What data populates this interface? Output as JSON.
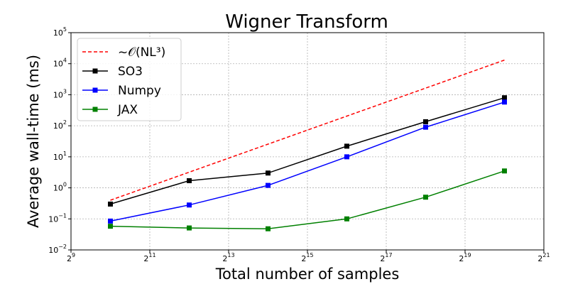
{
  "chart_data": {
    "type": "line",
    "title": "Wigner Transform",
    "xlabel": "Total number of samples",
    "ylabel": "Average wall-time (ms)",
    "x_scale": "log2",
    "y_scale": "log10",
    "xlim": [
      512,
      2097152
    ],
    "ylim": [
      0.01,
      100000
    ],
    "x_ticks": [
      {
        "base": "2",
        "exp": "9",
        "value": 512
      },
      {
        "base": "2",
        "exp": "11",
        "value": 2048
      },
      {
        "base": "2",
        "exp": "13",
        "value": 8192
      },
      {
        "base": "2",
        "exp": "15",
        "value": 32768
      },
      {
        "base": "2",
        "exp": "17",
        "value": 131072
      },
      {
        "base": "2",
        "exp": "19",
        "value": 524288
      },
      {
        "base": "2",
        "exp": "21",
        "value": 2097152
      }
    ],
    "y_ticks": [
      {
        "base": "10",
        "exp": "−2",
        "value": 0.01
      },
      {
        "base": "10",
        "exp": "−1",
        "value": 0.1
      },
      {
        "base": "10",
        "exp": "0",
        "value": 1
      },
      {
        "base": "10",
        "exp": "1",
        "value": 10
      },
      {
        "base": "10",
        "exp": "2",
        "value": 100
      },
      {
        "base": "10",
        "exp": "3",
        "value": 1000
      },
      {
        "base": "10",
        "exp": "4",
        "value": 10000
      },
      {
        "base": "10",
        "exp": "5",
        "value": 100000
      }
    ],
    "grid": true,
    "legend_position": "top-left",
    "x": [
      1024,
      4096,
      16384,
      65536,
      262144,
      1048576
    ],
    "series": [
      {
        "name": "~𝒪(NL³)",
        "color": "#ff0000",
        "style": "dashed",
        "marker": "none",
        "values": [
          0.4,
          3.2,
          25.6,
          205,
          1638,
          13107
        ]
      },
      {
        "name": "SO3",
        "color": "#000000",
        "style": "solid",
        "marker": "square",
        "values": [
          0.3,
          1.7,
          3.0,
          22,
          135,
          800
        ]
      },
      {
        "name": "Numpy",
        "color": "#0000ff",
        "style": "solid",
        "marker": "square",
        "values": [
          0.085,
          0.28,
          1.2,
          10,
          90,
          580
        ]
      },
      {
        "name": "JAX",
        "color": "#008000",
        "style": "solid",
        "marker": "square",
        "values": [
          0.058,
          0.051,
          0.048,
          0.1,
          0.5,
          3.5
        ]
      }
    ]
  }
}
